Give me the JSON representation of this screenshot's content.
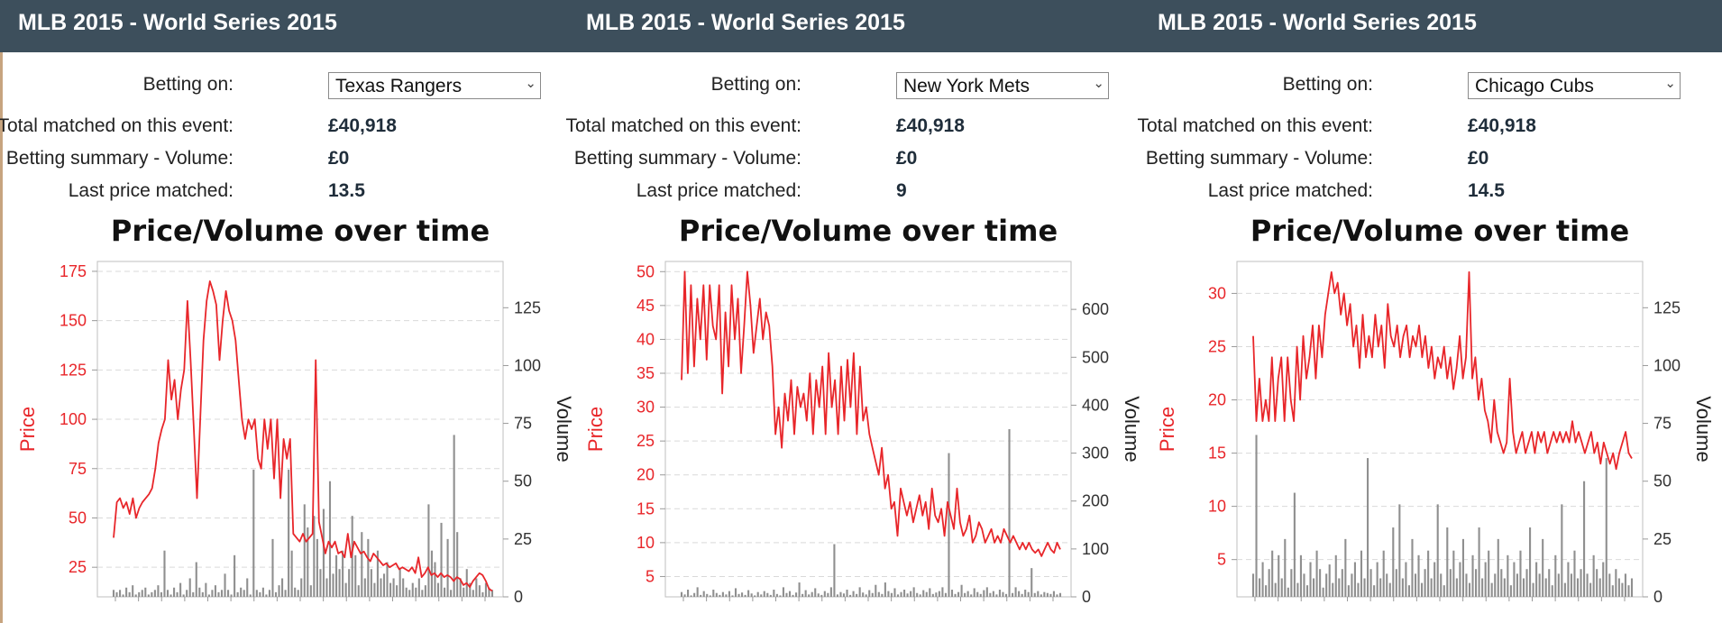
{
  "panels": [
    {
      "title": "MLB 2015 - World Series 2015",
      "betting_on_label": "Betting on:",
      "selection": "Texas Rangers",
      "total_matched_label": "Total matched on this event:",
      "total_matched": "£40,918",
      "summary_label": "Betting summary - Volume:",
      "summary_value": "£0",
      "last_price_label": "Last price matched:",
      "last_price": "13.5",
      "chart_data": {
        "type": "line",
        "title": "Price/Volume over time",
        "ylabel": "Price",
        "y2label": "Volume",
        "ylim": [
          10,
          180
        ],
        "yticks": [
          25,
          50,
          75,
          100,
          125,
          150,
          175
        ],
        "y2lim": [
          0,
          145
        ],
        "y2ticks": [
          0,
          25,
          50,
          75,
          100,
          125
        ],
        "price": [
          40,
          58,
          60,
          55,
          58,
          52,
          60,
          50,
          55,
          58,
          60,
          62,
          65,
          75,
          88,
          95,
          100,
          130,
          110,
          120,
          100,
          115,
          125,
          160,
          130,
          95,
          60,
          100,
          140,
          160,
          170,
          165,
          158,
          130,
          150,
          165,
          155,
          150,
          140,
          120,
          100,
          90,
          100,
          95,
          100,
          80,
          75,
          100,
          85,
          100,
          70,
          100,
          60,
          90,
          80,
          90,
          42,
          40,
          38,
          42,
          38,
          40,
          42,
          130,
          48,
          40,
          32,
          38,
          35,
          38,
          32,
          33,
          30,
          42,
          30,
          38,
          35,
          32,
          33,
          30,
          28,
          32,
          30,
          28,
          26,
          27,
          25,
          26,
          27,
          24,
          25,
          24,
          23,
          25,
          22,
          30,
          20,
          22,
          25,
          21,
          22,
          20,
          22,
          20,
          21,
          20,
          18,
          20,
          19,
          16,
          17,
          15,
          18,
          20,
          22,
          21,
          18,
          14,
          13
        ],
        "volume": [
          3,
          2,
          3,
          1,
          4,
          2,
          5,
          1,
          2,
          3,
          4,
          1,
          2,
          3,
          5,
          2,
          20,
          3,
          1,
          4,
          2,
          6,
          1,
          3,
          8,
          2,
          15,
          4,
          2,
          6,
          1,
          3,
          5,
          2,
          3,
          10,
          3,
          1,
          18,
          2,
          4,
          3,
          8,
          1,
          55,
          3,
          2,
          4,
          1,
          3,
          25,
          2,
          5,
          8,
          3,
          55,
          20,
          4,
          3,
          8,
          40,
          30,
          5,
          35,
          25,
          12,
          38,
          8,
          50,
          10,
          18,
          12,
          20,
          6,
          12,
          35,
          18,
          5,
          28,
          8,
          25,
          12,
          6,
          20,
          8,
          10,
          15,
          6,
          8,
          5,
          12,
          8,
          4,
          3,
          6,
          4,
          8,
          3,
          5,
          40,
          20,
          15,
          6,
          32,
          4,
          25,
          3,
          70,
          28,
          8,
          4,
          12,
          6,
          3,
          8,
          5,
          2,
          6,
          4,
          3
        ]
      }
    },
    {
      "title": "MLB 2015 - World Series 2015",
      "betting_on_label": "Betting on:",
      "selection": "New York Mets",
      "total_matched_label": "Total matched on this event:",
      "total_matched": "£40,918",
      "summary_label": "Betting summary - Volume:",
      "summary_value": "£0",
      "last_price_label": "Last price matched:",
      "last_price": "9",
      "chart_data": {
        "type": "line",
        "title": "Price/Volume over time",
        "ylabel": "Price",
        "y2label": "Volume",
        "ylim": [
          2,
          51.5
        ],
        "yticks": [
          5,
          10,
          15,
          20,
          25,
          30,
          35,
          40,
          45,
          50
        ],
        "y2lim": [
          0,
          700
        ],
        "y2ticks": [
          0,
          100,
          200,
          300,
          400,
          500,
          600
        ],
        "price": [
          34,
          50,
          35,
          48,
          36,
          46,
          40,
          48,
          37,
          48,
          42,
          40,
          48,
          32,
          44,
          36,
          48,
          40,
          46,
          35,
          42,
          50,
          45,
          38,
          42,
          46,
          40,
          44,
          42,
          36,
          26,
          30,
          24,
          32,
          28,
          34,
          26,
          33,
          30,
          32,
          28,
          35,
          26,
          34,
          30,
          36,
          26,
          38,
          30,
          34,
          26,
          36,
          28,
          37,
          30,
          38,
          26,
          36,
          28,
          30,
          26,
          24,
          22,
          20,
          24,
          18,
          20,
          15,
          16,
          11,
          18,
          16,
          14,
          16,
          13,
          15,
          17,
          14,
          16,
          12,
          18,
          14,
          13,
          15,
          11,
          16,
          14,
          12,
          18,
          13,
          11,
          12,
          14,
          10,
          11,
          13,
          12,
          10,
          11,
          12,
          10,
          11,
          10,
          12,
          11,
          10,
          11,
          10,
          9,
          10,
          9,
          10,
          9,
          8.5,
          9,
          8,
          9,
          10,
          9,
          8.5,
          10,
          9
        ],
        "volume": [
          10,
          5,
          15,
          3,
          8,
          20,
          4,
          12,
          6,
          3,
          15,
          8,
          4,
          10,
          5,
          12,
          3,
          18,
          6,
          9,
          4,
          14,
          7,
          3,
          10,
          5,
          12,
          8,
          4,
          15,
          6,
          3,
          20,
          8,
          12,
          4,
          9,
          30,
          6,
          14,
          5,
          10,
          18,
          7,
          4,
          12,
          8,
          20,
          110,
          5,
          10,
          7,
          15,
          4,
          12,
          6,
          20,
          9,
          5,
          14,
          8,
          25,
          10,
          6,
          30,
          12,
          8,
          18,
          5,
          10,
          15,
          7,
          12,
          20,
          8,
          5,
          14,
          10,
          18,
          6,
          9,
          12,
          20,
          8,
          300,
          15,
          6,
          10,
          25,
          8,
          12,
          5,
          18,
          10,
          6,
          14,
          20,
          8,
          12,
          5,
          15,
          10,
          6,
          350,
          8,
          20,
          12,
          6,
          15,
          10,
          60,
          8,
          12,
          5,
          10,
          8,
          6,
          12,
          5,
          8
        ]
      }
    },
    {
      "title": "MLB 2015 - World Series 2015",
      "betting_on_label": "Betting on:",
      "selection": "Chicago Cubs",
      "total_matched_label": "Total matched on this event:",
      "total_matched": "£40,918",
      "summary_label": "Betting summary - Volume:",
      "summary_value": "£0",
      "last_price_label": "Last price matched:",
      "last_price": "14.5",
      "chart_data": {
        "type": "line",
        "title": "Price/Volume over time",
        "ylabel": "Price",
        "y2label": "Volume",
        "ylim": [
          1.5,
          33
        ],
        "yticks": [
          5,
          10,
          15,
          20,
          25,
          30
        ],
        "y2lim": [
          0,
          145
        ],
        "y2ticks": [
          0,
          25,
          50,
          75,
          100,
          125
        ],
        "price": [
          26,
          18,
          22,
          18,
          20,
          18,
          24,
          18,
          22,
          24,
          18,
          24,
          20,
          18,
          25,
          20,
          26,
          22,
          24,
          27,
          22,
          27,
          24,
          28,
          30,
          32,
          30,
          31,
          28,
          30,
          27,
          29,
          25,
          27,
          23,
          28,
          24,
          26,
          24,
          28,
          25,
          27,
          23,
          29,
          26,
          25,
          27,
          24,
          26,
          27,
          24,
          26,
          25,
          27,
          24,
          26,
          23,
          25,
          22,
          24,
          23,
          25,
          22,
          24,
          21,
          23,
          26,
          22,
          24,
          32,
          22,
          24,
          20,
          22,
          19,
          18,
          16,
          20,
          17,
          16,
          15,
          16,
          22,
          17,
          15,
          16,
          17,
          15,
          16,
          17,
          15,
          17,
          16,
          17,
          15,
          16,
          17,
          16,
          17,
          16,
          17,
          16,
          18,
          16,
          17,
          16,
          15,
          16,
          17,
          15,
          16,
          14,
          16,
          15,
          14,
          15,
          13.5,
          15,
          16,
          17,
          15,
          14.5
        ],
        "volume": [
          10,
          70,
          8,
          15,
          5,
          12,
          20,
          6,
          18,
          8,
          25,
          4,
          12,
          45,
          6,
          18,
          10,
          5,
          15,
          8,
          20,
          12,
          4,
          10,
          14,
          6,
          18,
          8,
          12,
          25,
          5,
          10,
          15,
          6,
          20,
          8,
          60,
          12,
          5,
          15,
          8,
          20,
          10,
          6,
          30,
          12,
          40,
          8,
          15,
          5,
          25,
          10,
          18,
          6,
          12,
          20,
          8,
          15,
          40,
          10,
          5,
          30,
          12,
          20,
          8,
          15,
          25,
          10,
          6,
          18,
          12,
          30,
          8,
          15,
          20,
          6,
          10,
          25,
          12,
          8,
          18,
          5,
          15,
          10,
          20,
          8,
          12,
          30,
          6,
          15,
          10,
          25,
          8,
          12,
          5,
          18,
          10,
          40,
          6,
          15,
          10,
          20,
          8,
          12,
          50,
          10,
          6,
          18,
          12,
          8,
          15,
          60,
          10,
          5,
          12,
          8,
          6,
          10,
          5,
          8
        ]
      }
    }
  ],
  "colors": {
    "header_bg": "#3d4f5c",
    "price_line": "#e8262a",
    "volume_bar": "#8f8f8f",
    "axis_label_price": "#e8262a"
  }
}
